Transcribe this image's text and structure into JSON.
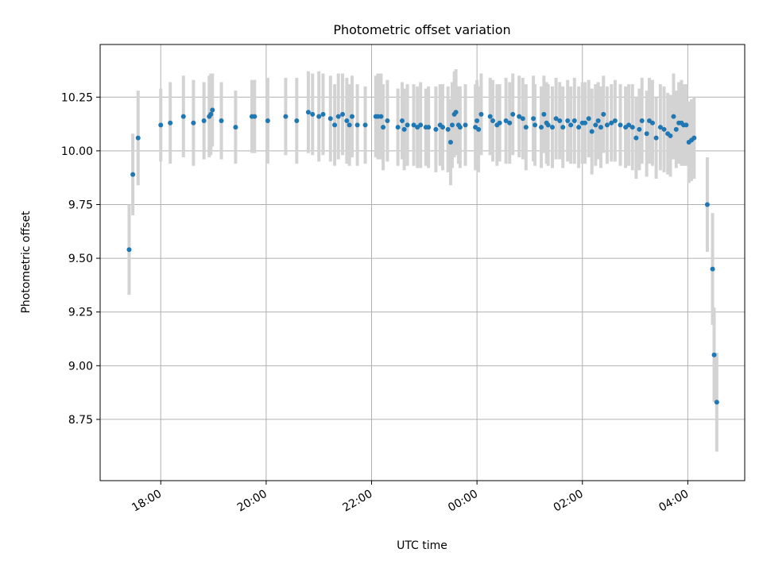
{
  "chart_data": {
    "type": "scatter",
    "title": "Photometric offset variation",
    "xlabel": "UTC time",
    "ylabel": "Photometric offset",
    "x_unit": "hours since 18:00 UTC",
    "xlim": [
      -1.15,
      11.08
    ],
    "ylim": [
      8.465,
      10.495
    ],
    "x_ticks": [
      {
        "value": 0,
        "label": "18:00"
      },
      {
        "value": 2,
        "label": "20:00"
      },
      {
        "value": 4,
        "label": "22:00"
      },
      {
        "value": 6,
        "label": "00:00"
      },
      {
        "value": 8,
        "label": "02:00"
      },
      {
        "value": 10,
        "label": "04:00"
      }
    ],
    "y_ticks": [
      {
        "value": 8.75,
        "label": "8.75"
      },
      {
        "value": 9.0,
        "label": "9.00"
      },
      {
        "value": 9.25,
        "label": "9.25"
      },
      {
        "value": 9.5,
        "label": "9.50"
      },
      {
        "value": 9.75,
        "label": "9.75"
      },
      {
        "value": 10.0,
        "label": "10.00"
      },
      {
        "value": 10.25,
        "label": "10.25"
      }
    ],
    "grid": true,
    "point_color": "#1f77b4",
    "errorbar_color": "#d3d3d3",
    "series": [
      {
        "name": "Photometric offset",
        "x": [
          -0.6,
          -0.53,
          -0.43,
          0.0,
          0.18,
          0.43,
          0.62,
          0.82,
          0.92,
          0.95,
          0.98,
          1.15,
          1.42,
          1.73,
          1.78,
          2.03,
          2.37,
          2.58,
          2.8,
          2.88,
          3.0,
          3.08,
          3.22,
          3.3,
          3.37,
          3.45,
          3.53,
          3.58,
          3.63,
          3.73,
          3.88,
          4.08,
          4.12,
          4.18,
          4.22,
          4.3,
          4.5,
          4.58,
          4.62,
          4.68,
          4.8,
          4.87,
          4.93,
          5.03,
          5.08,
          5.22,
          5.3,
          5.35,
          5.45,
          5.5,
          5.53,
          5.57,
          5.6,
          5.65,
          5.68,
          5.78,
          5.97,
          6.0,
          6.03,
          6.08,
          6.25,
          6.3,
          6.38,
          6.43,
          6.55,
          6.62,
          6.68,
          6.8,
          6.87,
          6.93,
          7.07,
          7.1,
          7.22,
          7.27,
          7.32,
          7.35,
          7.43,
          7.5,
          7.57,
          7.63,
          7.72,
          7.78,
          7.85,
          7.93,
          8.0,
          8.05,
          8.12,
          8.18,
          8.25,
          8.3,
          8.35,
          8.4,
          8.47,
          8.55,
          8.62,
          8.72,
          8.82,
          8.88,
          8.95,
          9.02,
          9.08,
          9.13,
          9.22,
          9.27,
          9.33,
          9.4,
          9.48,
          9.55,
          9.62,
          9.67,
          9.73,
          9.78,
          9.83,
          9.88,
          9.92,
          9.97,
          10.02,
          10.07,
          10.12,
          10.37,
          10.47,
          10.5,
          10.55
        ],
        "y": [
          9.54,
          9.89,
          10.06,
          10.12,
          10.13,
          10.16,
          10.13,
          10.14,
          10.16,
          10.17,
          10.19,
          10.14,
          10.11,
          10.16,
          10.16,
          10.14,
          10.16,
          10.14,
          10.18,
          10.17,
          10.16,
          10.17,
          10.15,
          10.12,
          10.16,
          10.17,
          10.14,
          10.12,
          10.16,
          10.12,
          10.12,
          10.16,
          10.16,
          10.16,
          10.11,
          10.14,
          10.11,
          10.14,
          10.1,
          10.12,
          10.12,
          10.11,
          10.12,
          10.11,
          10.11,
          10.1,
          10.12,
          10.11,
          10.1,
          10.04,
          10.12,
          10.17,
          10.18,
          10.12,
          10.11,
          10.12,
          10.11,
          10.14,
          10.1,
          10.17,
          10.16,
          10.14,
          10.12,
          10.13,
          10.14,
          10.13,
          10.17,
          10.16,
          10.15,
          10.11,
          10.15,
          10.12,
          10.11,
          10.17,
          10.13,
          10.12,
          10.11,
          10.15,
          10.14,
          10.11,
          10.14,
          10.12,
          10.14,
          10.11,
          10.13,
          10.13,
          10.15,
          10.09,
          10.12,
          10.14,
          10.11,
          10.17,
          10.12,
          10.13,
          10.14,
          10.12,
          10.11,
          10.12,
          10.11,
          10.06,
          10.1,
          10.14,
          10.08,
          10.14,
          10.13,
          10.06,
          10.11,
          10.1,
          10.08,
          10.07,
          10.16,
          10.1,
          10.13,
          10.13,
          10.12,
          10.12,
          10.04,
          10.05,
          10.06,
          9.75,
          9.45,
          9.05,
          8.83
        ],
        "err": [
          0.21,
          0.19,
          0.22,
          0.17,
          0.19,
          0.19,
          0.2,
          0.18,
          0.19,
          0.19,
          0.17,
          0.18,
          0.17,
          0.17,
          0.17,
          0.2,
          0.18,
          0.2,
          0.19,
          0.19,
          0.21,
          0.19,
          0.2,
          0.19,
          0.2,
          0.19,
          0.2,
          0.19,
          0.19,
          0.19,
          0.18,
          0.19,
          0.2,
          0.2,
          0.2,
          0.19,
          0.18,
          0.18,
          0.19,
          0.19,
          0.19,
          0.19,
          0.2,
          0.18,
          0.19,
          0.2,
          0.19,
          0.2,
          0.2,
          0.2,
          0.2,
          0.2,
          0.2,
          0.18,
          0.19,
          0.19,
          0.2,
          0.19,
          0.2,
          0.19,
          0.18,
          0.19,
          0.19,
          0.18,
          0.2,
          0.19,
          0.19,
          0.19,
          0.19,
          0.2,
          0.2,
          0.19,
          0.19,
          0.18,
          0.19,
          0.19,
          0.19,
          0.19,
          0.18,
          0.19,
          0.19,
          0.18,
          0.2,
          0.19,
          0.19,
          0.19,
          0.18,
          0.2,
          0.19,
          0.18,
          0.19,
          0.18,
          0.18,
          0.18,
          0.19,
          0.19,
          0.19,
          0.19,
          0.2,
          0.19,
          0.19,
          0.2,
          0.2,
          0.2,
          0.2,
          0.19,
          0.2,
          0.2,
          0.19,
          0.19,
          0.2,
          0.18,
          0.19,
          0.2,
          0.19,
          0.19,
          0.19,
          0.19,
          0.19,
          0.22,
          0.26,
          0.22,
          0.23
        ]
      }
    ]
  }
}
